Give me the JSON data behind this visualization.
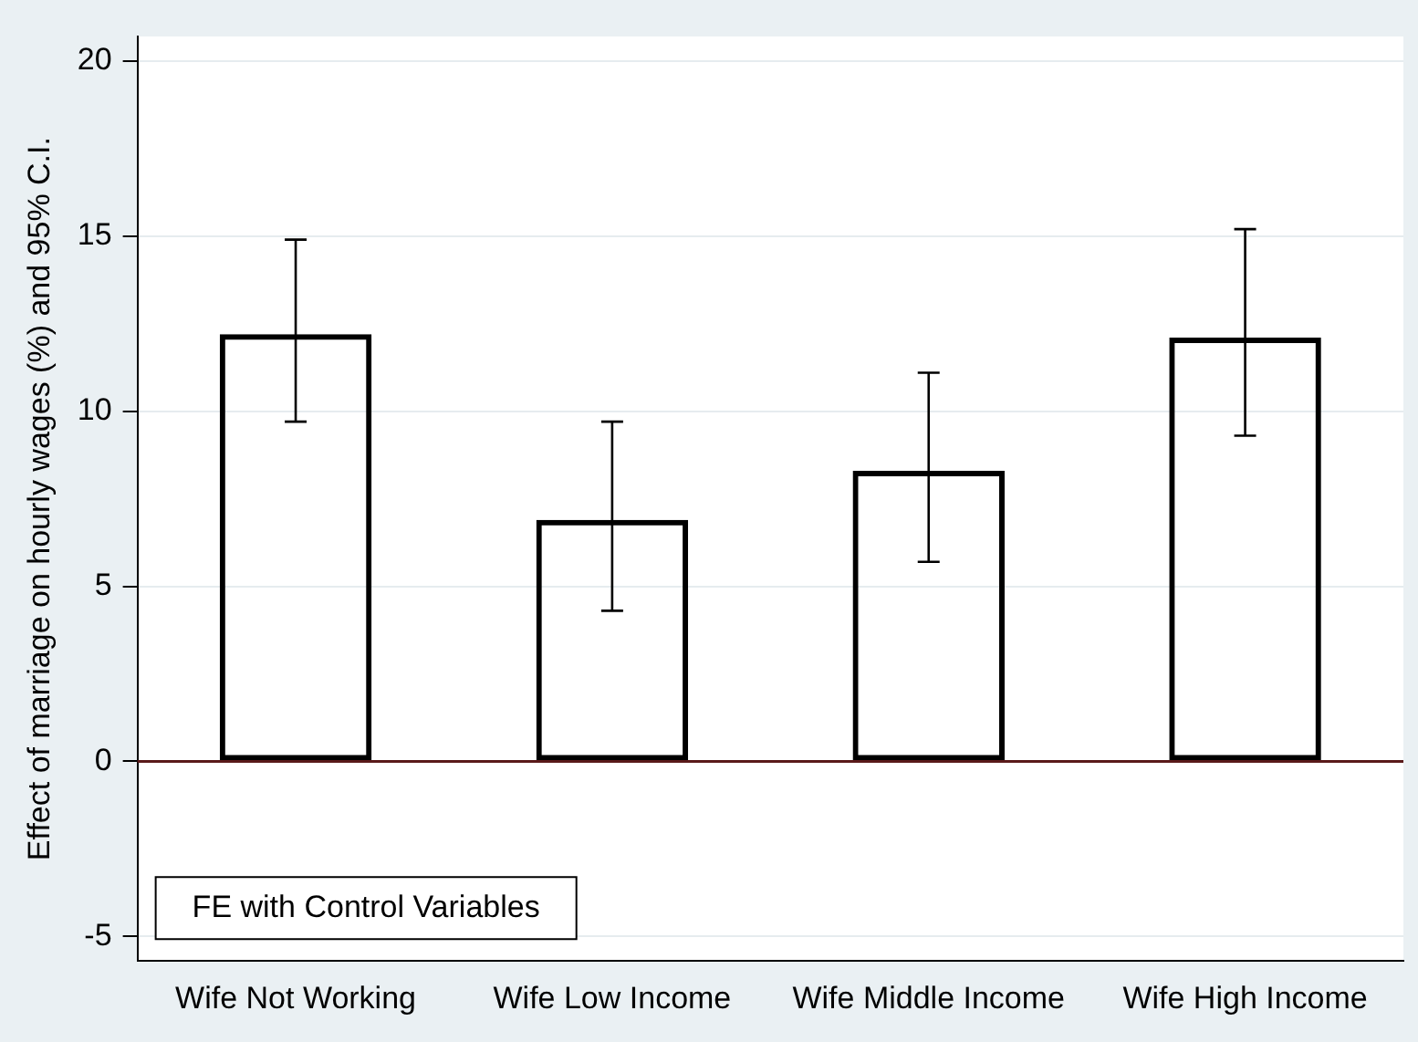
{
  "chart_data": {
    "type": "bar",
    "ylabel": "Effect of marriage on hourly wages (%) and 95% C.I.",
    "categories": [
      "Wife Not Working",
      "Wife Low Income",
      "Wife Middle Income",
      "Wife High Income"
    ],
    "series": [
      {
        "color": "#000000",
        "values": [
          12.2,
          6.9,
          8.3,
          12.1
        ],
        "errors": [
          [
            9.7,
            14.9
          ],
          [
            4.3,
            9.7
          ],
          [
            5.7,
            11.1
          ],
          [
            9.3,
            15.2
          ]
        ]
      }
    ],
    "ylim": [
      -5.7,
      20.7
    ],
    "yticks": [
      -5,
      0,
      5,
      10,
      15,
      20
    ],
    "grid": "y",
    "ref_lines": [
      {
        "axis": "y",
        "value": 0,
        "color": "#5a1a1a"
      }
    ],
    "annotations": [
      "FE with Control Variables"
    ]
  }
}
